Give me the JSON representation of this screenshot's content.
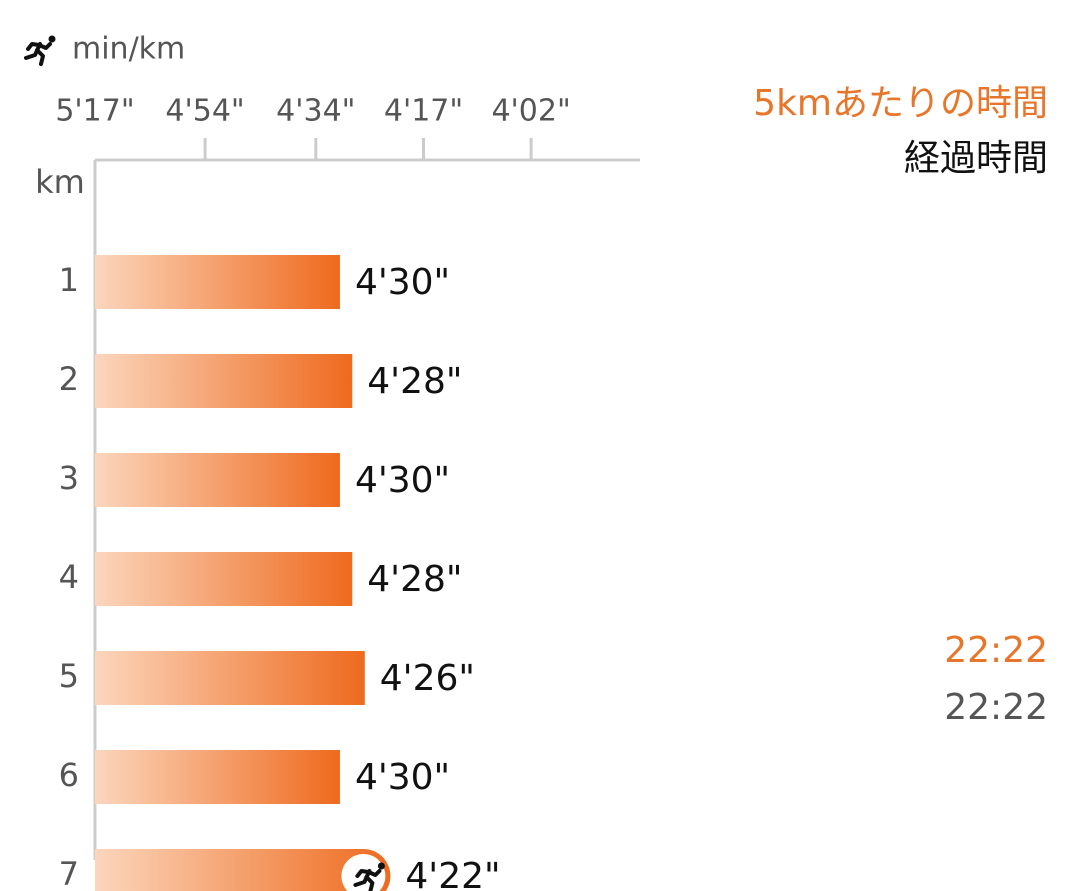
{
  "chart_data": {
    "type": "bar",
    "orientation": "horizontal",
    "xscale": "reciprocal",
    "unit_label": "min/km",
    "y_label": "km",
    "categories": [
      "1",
      "2",
      "3",
      "4",
      "5",
      "6",
      "7"
    ],
    "values": [
      270,
      268,
      270,
      268,
      266,
      270,
      262
    ],
    "value_labels": [
      "4'30\"",
      "4'28\"",
      "4'30\"",
      "4'28\"",
      "4'26\"",
      "4'30\"",
      "4'22\""
    ],
    "color": "#ee6a1e",
    "xlim": [
      317,
      228.5
    ],
    "xticks": [
      {
        "value": 317,
        "label": "5'17\""
      },
      {
        "value": 294,
        "label": "4'54\""
      },
      {
        "value": 274,
        "label": "4'34\""
      },
      {
        "value": 257,
        "label": "4'17\""
      },
      {
        "value": 242,
        "label": "4'02\""
      }
    ]
  },
  "legend": {
    "split_label": "5kmあたりの時間",
    "split_color": "#e8762a",
    "elapsed_label": "経過時間"
  },
  "splits": [
    {
      "category": "5",
      "split": "22:22",
      "elapsed": "22:22"
    }
  ]
}
